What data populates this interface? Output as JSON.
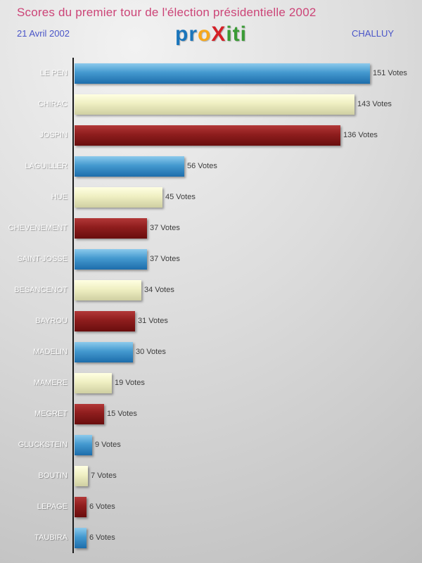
{
  "header": {
    "title": "Scores du premier tour de l'élection présidentielle 2002",
    "date": "21 Avril 2002",
    "location": "CHALLUY",
    "logo": {
      "segments": [
        {
          "text": "pr",
          "color": "#1a75bb"
        },
        {
          "text": "o",
          "color": "#f7a81b"
        },
        {
          "text": "X",
          "color": "#d42027"
        },
        {
          "text": "iti",
          "color": "#3a9b35"
        }
      ]
    }
  },
  "chart_data": {
    "type": "bar",
    "orientation": "horizontal",
    "title": "Scores du premier tour de l'élection présidentielle 2002",
    "categories": [
      "LE PEN",
      "CHIRAC",
      "JOSPIN",
      "LAGUILLER",
      "HUE",
      "CHEVENEMENT",
      "SAINT-JOSSE",
      "BESANCENOT",
      "BAYROU",
      "MADELIN",
      "MAMERE",
      "MEGRET",
      "GLUCKSTEIN",
      "BOUTIN",
      "LEPAGE",
      "TAUBIRA"
    ],
    "values": [
      151,
      143,
      136,
      56,
      45,
      37,
      37,
      34,
      31,
      30,
      19,
      15,
      9,
      7,
      6,
      6
    ],
    "value_suffix": " Votes",
    "bar_colors_cycle": [
      "blue",
      "cream",
      "red"
    ],
    "bar_color_hex": {
      "blue": "#1d6dab",
      "cream": "#efefc2",
      "red": "#8e1d1d"
    },
    "xlim": [
      0,
      160
    ],
    "legend": "none",
    "grid": "off"
  }
}
